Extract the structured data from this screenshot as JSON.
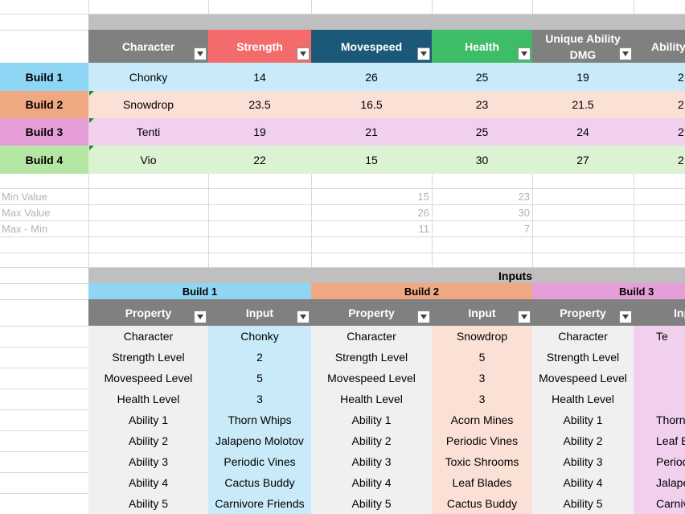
{
  "colors": {
    "header_grey": "#808080",
    "header_strength": "#f36b6b",
    "header_movespeed": "#1c5877",
    "header_health": "#3dbd67",
    "build1": "#8fd6f4",
    "build1_light": "#c9ebf9",
    "build2": "#f0a883",
    "build2_light": "#fbe0d5",
    "build3": "#e59ed8",
    "build3_light": "#f1d0ee",
    "build4": "#b6e6a4",
    "build4_light": "#dbf2d3",
    "section_grey": "#bfbfbf",
    "property_grey": "#f0f0f0"
  },
  "top_table": {
    "headers": [
      "Character",
      "Strength",
      "Movespeed",
      "Health",
      "Unique Ability DMG",
      "Ability"
    ],
    "rows": [
      {
        "label": "Build 1",
        "cells": [
          "Chonky",
          "14",
          "26",
          "25",
          "19",
          "2"
        ]
      },
      {
        "label": "Build 2",
        "cells": [
          "Snowdrop",
          "23.5",
          "16.5",
          "23",
          "21.5",
          "2"
        ]
      },
      {
        "label": "Build 3",
        "cells": [
          "Tenti",
          "19",
          "21",
          "25",
          "24",
          "2"
        ]
      },
      {
        "label": "Build 4",
        "cells": [
          "Vio",
          "22",
          "15",
          "30",
          "27",
          "2"
        ]
      }
    ]
  },
  "stats": [
    {
      "label": "Min Value",
      "movespeed": "15",
      "health": "23"
    },
    {
      "label": "Max Value",
      "movespeed": "26",
      "health": "30"
    },
    {
      "label": "Max - Min",
      "movespeed": "11",
      "health": "7"
    }
  ],
  "inputs": {
    "title": "Inputs",
    "builds": [
      "Build 1",
      "Build 2",
      "Build 3"
    ],
    "col_headers": {
      "property": "Property",
      "input": "Input"
    },
    "properties": [
      "Character",
      "Strength Level",
      "Movespeed Level",
      "Health Level",
      "Ability 1",
      "Ability 2",
      "Ability 3",
      "Ability 4",
      "Ability 5"
    ],
    "build1": [
      "Chonky",
      "2",
      "5",
      "3",
      "Thorn Whips",
      "Jalapeno Molotov",
      "Periodic Vines",
      "Cactus Buddy",
      "Carnivore Friends"
    ],
    "build2": [
      "Snowdrop",
      "5",
      "3",
      "3",
      "Acorn Mines",
      "Periodic Vines",
      "Toxic Shrooms",
      "Leaf Blades",
      "Cactus Buddy"
    ],
    "build3": [
      "Te",
      "",
      "",
      "",
      "Thorn",
      "Leaf B",
      "Period",
      "Jalapen",
      "Carnivo"
    ]
  }
}
